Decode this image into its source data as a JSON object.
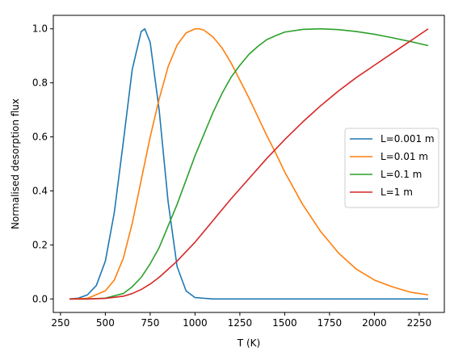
{
  "chart_data": {
    "type": "line",
    "title": "",
    "xlabel": "T (K)",
    "ylabel": "Normalised desorption flux",
    "xlim": [
      210,
      2390
    ],
    "ylim": [
      -0.05,
      1.05
    ],
    "xticks": [
      250,
      500,
      750,
      1000,
      1250,
      1500,
      1750,
      2000,
      2250
    ],
    "yticks": [
      0.0,
      0.2,
      0.4,
      0.6,
      0.8,
      1.0
    ],
    "xtick_labels": [
      "250",
      "500",
      "750",
      "1000",
      "1250",
      "1500",
      "1750",
      "2000",
      "2250"
    ],
    "ytick_labels": [
      "0.0",
      "0.2",
      "0.4",
      "0.6",
      "0.8",
      "1.0"
    ],
    "grid": false,
    "legend_position": "center-right",
    "series": [
      {
        "name": "L=0.001 m",
        "color": "#1f77b4",
        "x": [
          300,
          350,
          400,
          450,
          500,
          550,
          600,
          650,
          700,
          720,
          750,
          800,
          850,
          900,
          950,
          1000,
          1100,
          1250,
          1500,
          1750,
          2000,
          2300
        ],
        "y": [
          0.0,
          0.003,
          0.015,
          0.05,
          0.14,
          0.32,
          0.58,
          0.85,
          0.99,
          1.0,
          0.95,
          0.7,
          0.36,
          0.12,
          0.03,
          0.005,
          0.0,
          0.0,
          0.0,
          0.0,
          0.0,
          0.0
        ]
      },
      {
        "name": "L=0.01 m",
        "color": "#ff7f0e",
        "x": [
          300,
          400,
          500,
          550,
          600,
          650,
          700,
          750,
          800,
          850,
          900,
          950,
          1000,
          1025,
          1050,
          1100,
          1150,
          1200,
          1250,
          1300,
          1350,
          1400,
          1450,
          1500,
          1600,
          1700,
          1800,
          1900,
          2000,
          2100,
          2200,
          2300
        ],
        "y": [
          0.0,
          0.002,
          0.03,
          0.07,
          0.15,
          0.28,
          0.44,
          0.6,
          0.74,
          0.86,
          0.94,
          0.985,
          1.0,
          1.0,
          0.995,
          0.97,
          0.93,
          0.875,
          0.81,
          0.745,
          0.675,
          0.605,
          0.54,
          0.47,
          0.35,
          0.25,
          0.17,
          0.11,
          0.07,
          0.045,
          0.025,
          0.015
        ]
      },
      {
        "name": "L=0.1 m",
        "color": "#2ca02c",
        "x": [
          300,
          400,
          500,
          600,
          650,
          700,
          750,
          800,
          850,
          900,
          950,
          1000,
          1050,
          1100,
          1150,
          1200,
          1250,
          1300,
          1350,
          1400,
          1450,
          1500,
          1600,
          1700,
          1800,
          1900,
          2000,
          2100,
          2200,
          2300
        ],
        "y": [
          0.0,
          0.0,
          0.003,
          0.02,
          0.045,
          0.08,
          0.13,
          0.19,
          0.27,
          0.35,
          0.44,
          0.53,
          0.61,
          0.69,
          0.76,
          0.82,
          0.865,
          0.905,
          0.935,
          0.96,
          0.975,
          0.988,
          0.998,
          1.0,
          0.997,
          0.99,
          0.98,
          0.967,
          0.953,
          0.938
        ]
      },
      {
        "name": "L=1 m",
        "color": "#d62728",
        "x": [
          300,
          400,
          500,
          600,
          650,
          700,
          750,
          800,
          850,
          900,
          950,
          1000,
          1100,
          1200,
          1300,
          1400,
          1500,
          1600,
          1700,
          1800,
          1900,
          2000,
          2100,
          2200,
          2300
        ],
        "y": [
          0.0,
          0.0,
          0.002,
          0.01,
          0.02,
          0.035,
          0.055,
          0.08,
          0.11,
          0.14,
          0.175,
          0.21,
          0.29,
          0.37,
          0.445,
          0.52,
          0.59,
          0.655,
          0.715,
          0.77,
          0.82,
          0.865,
          0.91,
          0.955,
          1.0
        ]
      }
    ]
  }
}
